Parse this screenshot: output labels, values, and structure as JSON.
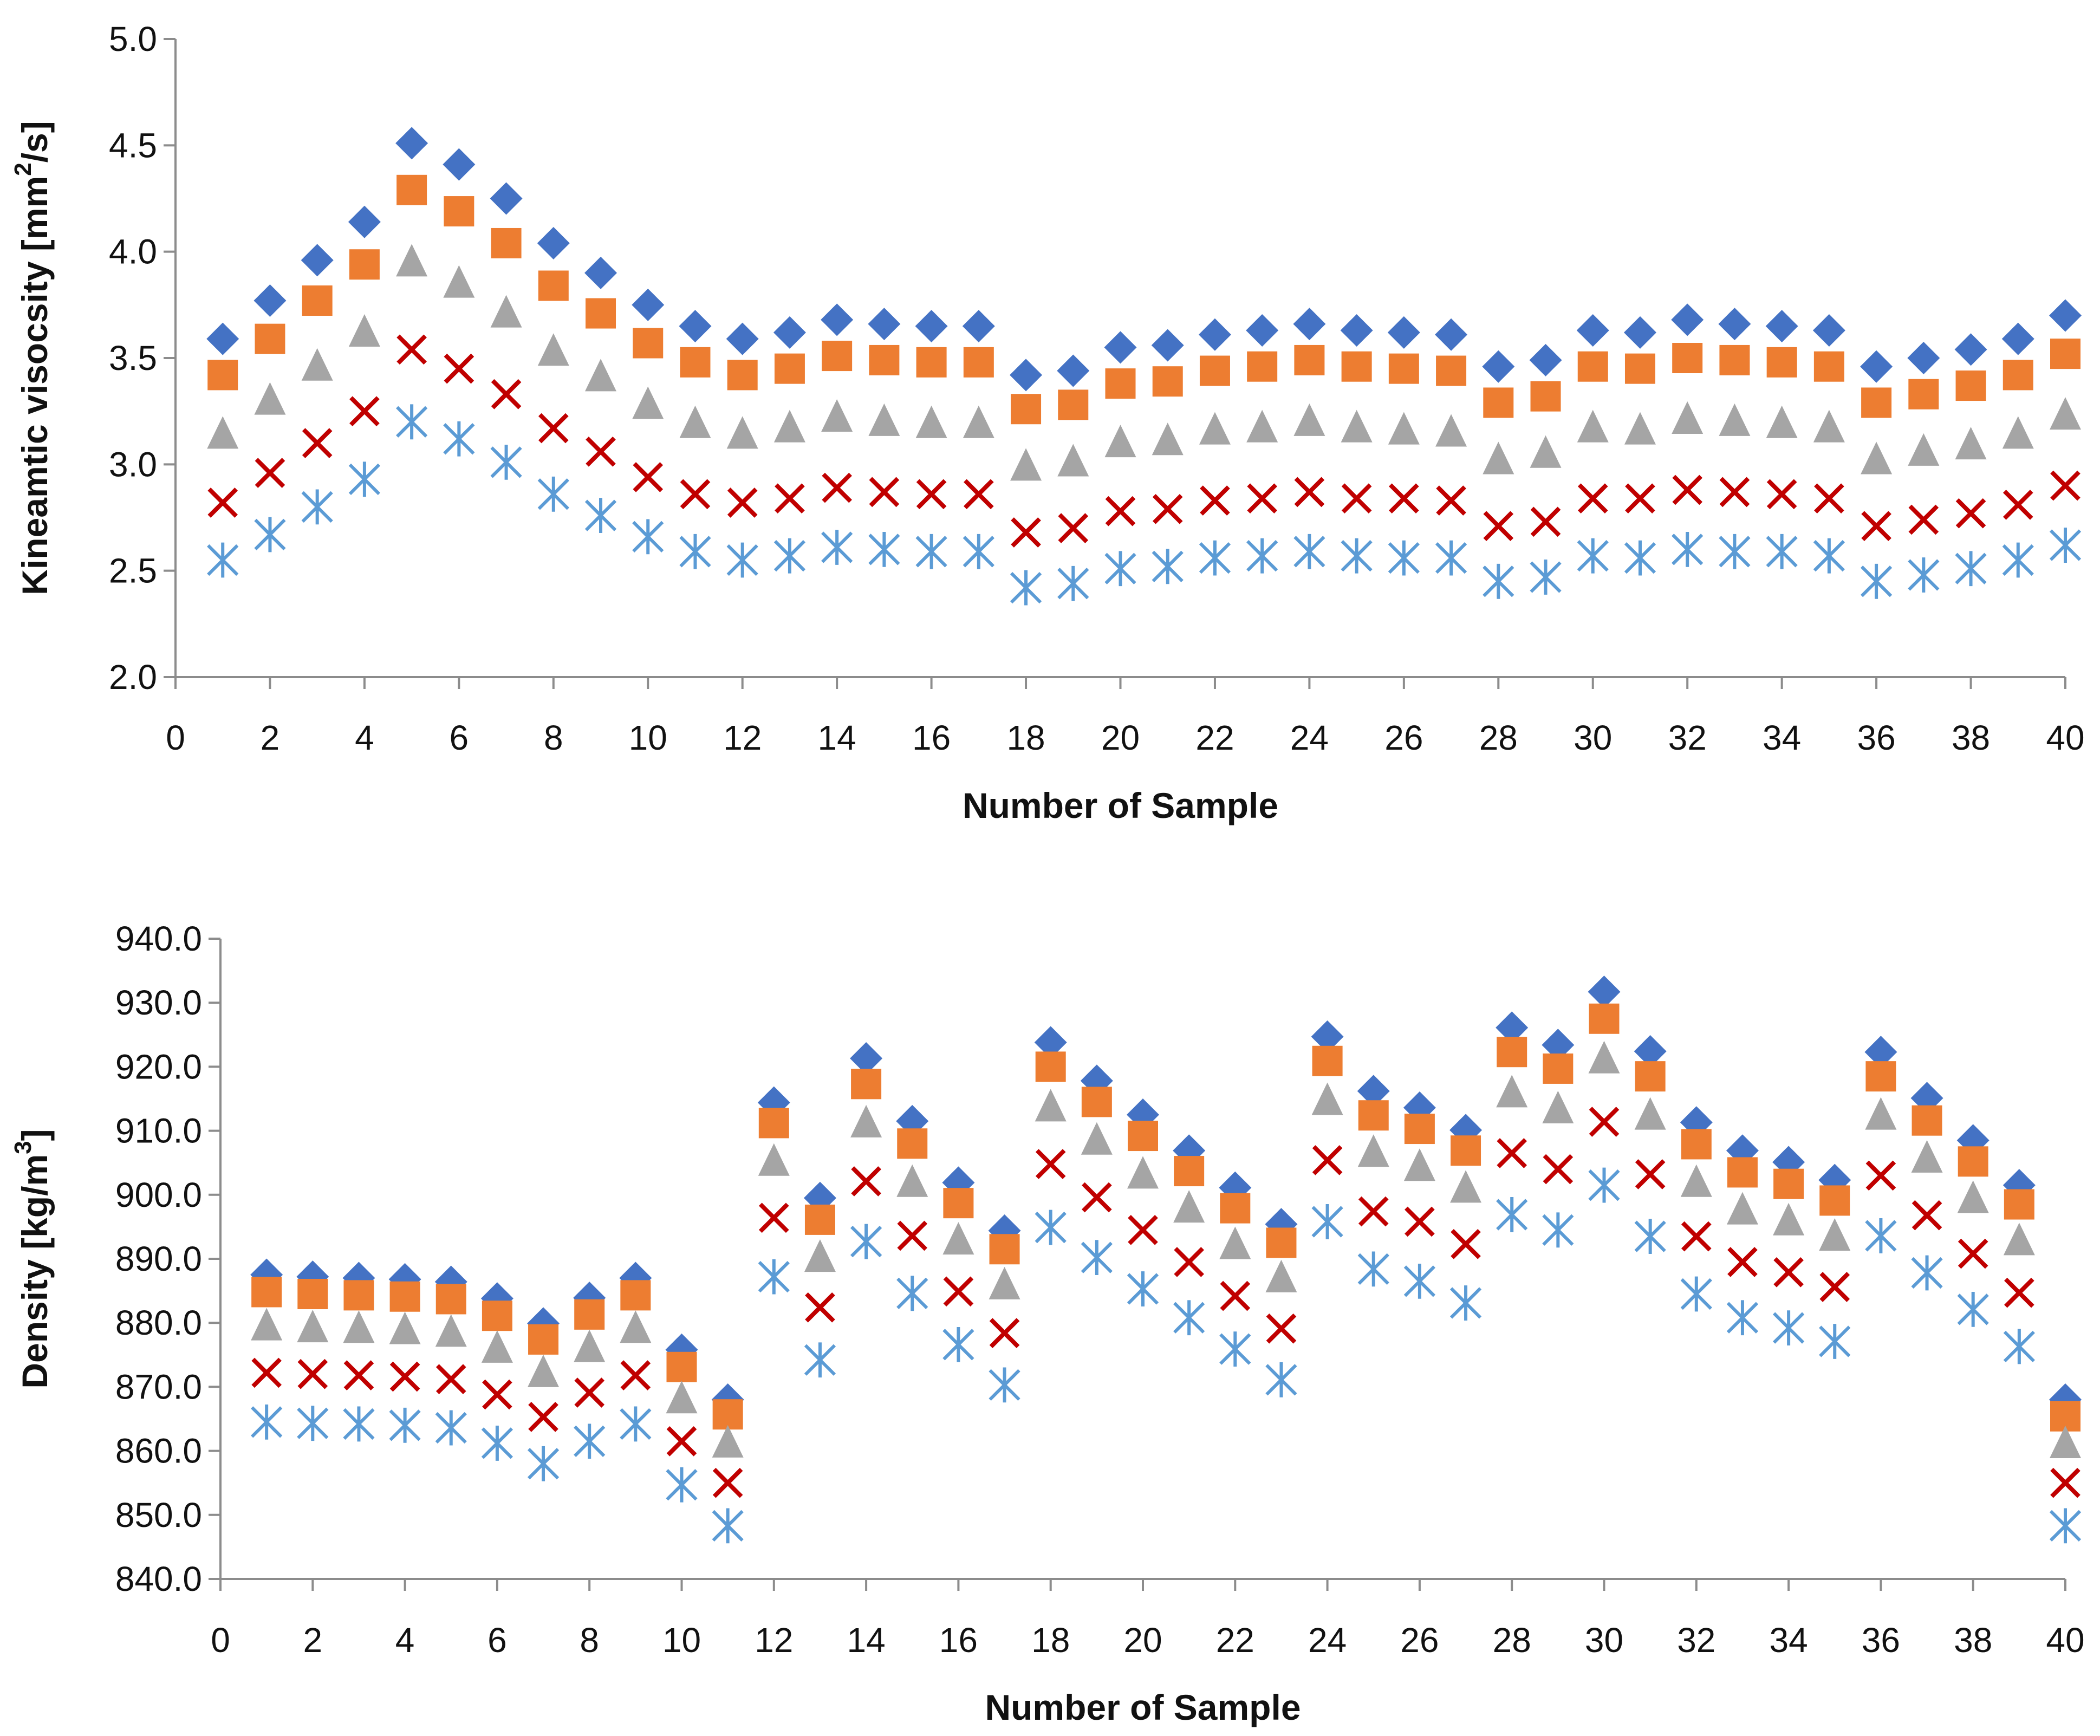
{
  "colors": {
    "diamond": "#4472C4",
    "square": "#ED7D31",
    "triangle": "#A5A5A5",
    "cross": "#C00000",
    "asterisk": "#5B9BD5",
    "axis": "#8C8C8C",
    "text": "#111111"
  },
  "chart_data": [
    {
      "type": "scatter",
      "title": "",
      "xlabel": "Number of Sample",
      "ylabel_main": "Kineamtic visocsity [mm",
      "ylabel_sup": "2",
      "ylabel_end": "/s]",
      "xlim": [
        0,
        40
      ],
      "ylim": [
        2.0,
        5.0
      ],
      "x_ticks": [
        "0",
        "2",
        "4",
        "6",
        "8",
        "10",
        "12",
        "14",
        "16",
        "18",
        "20",
        "22",
        "24",
        "26",
        "28",
        "30",
        "32",
        "34",
        "36",
        "38",
        "40"
      ],
      "y_ticks": [
        "2.0",
        "2.5",
        "3.0",
        "3.5",
        "4.0",
        "4.5",
        "5.0"
      ],
      "legend": "none",
      "x": [
        1,
        2,
        3,
        4,
        5,
        6,
        7,
        8,
        9,
        10,
        11,
        12,
        13,
        14,
        15,
        16,
        17,
        18,
        19,
        20,
        21,
        22,
        23,
        24,
        25,
        26,
        27,
        28,
        29,
        30,
        31,
        32,
        33,
        34,
        35,
        36,
        37,
        38,
        39,
        40
      ],
      "series": [
        {
          "name": "diamond",
          "marker": "diamond",
          "values": [
            3.59,
            3.77,
            3.96,
            4.14,
            4.51,
            4.41,
            4.25,
            4.04,
            3.9,
            3.75,
            3.65,
            3.59,
            3.62,
            3.68,
            3.66,
            3.65,
            3.65,
            3.42,
            3.44,
            3.55,
            3.56,
            3.61,
            3.63,
            3.66,
            3.63,
            3.62,
            3.61,
            3.46,
            3.49,
            3.63,
            3.62,
            3.68,
            3.66,
            3.65,
            3.63,
            3.46,
            3.5,
            3.54,
            3.59,
            3.7
          ]
        },
        {
          "name": "square",
          "marker": "square",
          "values": [
            3.42,
            3.59,
            3.77,
            3.94,
            4.29,
            4.19,
            4.04,
            3.84,
            3.71,
            3.57,
            3.48,
            3.42,
            3.45,
            3.51,
            3.49,
            3.48,
            3.48,
            3.26,
            3.28,
            3.38,
            3.39,
            3.44,
            3.46,
            3.49,
            3.46,
            3.45,
            3.44,
            3.29,
            3.32,
            3.46,
            3.45,
            3.5,
            3.49,
            3.48,
            3.46,
            3.29,
            3.33,
            3.37,
            3.42,
            3.52
          ]
        },
        {
          "name": "triangle",
          "marker": "triangle",
          "values": [
            3.15,
            3.31,
            3.47,
            3.63,
            3.96,
            3.86,
            3.72,
            3.54,
            3.42,
            3.29,
            3.2,
            3.15,
            3.18,
            3.23,
            3.21,
            3.2,
            3.2,
            3.0,
            3.02,
            3.11,
            3.12,
            3.17,
            3.18,
            3.21,
            3.18,
            3.17,
            3.16,
            3.03,
            3.06,
            3.18,
            3.17,
            3.22,
            3.21,
            3.2,
            3.18,
            3.03,
            3.07,
            3.1,
            3.15,
            3.24
          ]
        },
        {
          "name": "cross",
          "marker": "cross",
          "values": [
            2.82,
            2.96,
            3.1,
            3.25,
            3.54,
            3.45,
            3.33,
            3.17,
            3.06,
            2.94,
            2.86,
            2.82,
            2.84,
            2.89,
            2.87,
            2.86,
            2.86,
            2.68,
            2.7,
            2.78,
            2.79,
            2.83,
            2.84,
            2.87,
            2.84,
            2.84,
            2.83,
            2.71,
            2.73,
            2.84,
            2.84,
            2.88,
            2.87,
            2.86,
            2.84,
            2.71,
            2.74,
            2.77,
            2.81,
            2.9
          ]
        },
        {
          "name": "asterisk",
          "marker": "asterisk",
          "values": [
            2.55,
            2.67,
            2.8,
            2.93,
            3.2,
            3.12,
            3.01,
            2.86,
            2.76,
            2.66,
            2.59,
            2.55,
            2.57,
            2.61,
            2.6,
            2.59,
            2.59,
            2.42,
            2.44,
            2.51,
            2.52,
            2.56,
            2.57,
            2.59,
            2.57,
            2.56,
            2.56,
            2.45,
            2.47,
            2.57,
            2.56,
            2.6,
            2.59,
            2.59,
            2.57,
            2.45,
            2.48,
            2.51,
            2.55,
            2.62
          ]
        }
      ]
    },
    {
      "type": "scatter",
      "title": "",
      "xlabel": "Number of Sample",
      "ylabel_main": "Density [kg/m",
      "ylabel_sup": "3",
      "ylabel_end": "]",
      "xlim": [
        0,
        40
      ],
      "ylim": [
        840,
        940
      ],
      "x_ticks": [
        "0",
        "2",
        "4",
        "6",
        "8",
        "10",
        "12",
        "14",
        "16",
        "18",
        "20",
        "22",
        "24",
        "26",
        "28",
        "30",
        "32",
        "34",
        "36",
        "38",
        "40"
      ],
      "y_ticks": [
        "840.0",
        "850.0",
        "860.0",
        "870.0",
        "880.0",
        "890.0",
        "900.0",
        "910.0",
        "920.0",
        "930.0",
        "940.0"
      ],
      "legend": "none",
      "x": [
        1,
        2,
        3,
        4,
        5,
        6,
        7,
        8,
        9,
        10,
        11,
        12,
        13,
        14,
        15,
        16,
        17,
        18,
        19,
        20,
        21,
        22,
        23,
        24,
        25,
        26,
        27,
        28,
        29,
        30,
        31,
        32,
        33,
        34,
        35,
        36,
        37,
        38,
        39,
        40
      ],
      "series": [
        {
          "name": "diamond",
          "marker": "diamond",
          "values": [
            887.5,
            887.2,
            887.0,
            886.8,
            886.4,
            883.8,
            879.9,
            883.9,
            887.0,
            875.8,
            868.0,
            914.4,
            899.5,
            921.3,
            911.5,
            901.9,
            894.4,
            923.8,
            917.8,
            912.5,
            906.9,
            901.1,
            895.4,
            924.7,
            916.2,
            913.6,
            910.1,
            926.1,
            923.4,
            931.7,
            922.4,
            911.3,
            906.9,
            905.1,
            902.3,
            922.3,
            915.1,
            908.5,
            901.5,
            868.0
          ]
        },
        {
          "name": "square",
          "marker": "square",
          "values": [
            884.8,
            884.5,
            884.3,
            884.1,
            883.7,
            881.1,
            877.4,
            881.3,
            884.3,
            873.1,
            865.7,
            911.2,
            896.1,
            917.3,
            908.0,
            898.7,
            891.5,
            920.0,
            914.5,
            909.2,
            903.7,
            897.9,
            892.5,
            920.9,
            912.4,
            910.3,
            906.9,
            922.3,
            919.7,
            927.5,
            918.5,
            907.9,
            903.5,
            901.7,
            899.1,
            918.5,
            911.6,
            905.2,
            898.5,
            865.4
          ]
        },
        {
          "name": "triangle",
          "marker": "triangle",
          "values": [
            879.8,
            879.5,
            879.4,
            879.2,
            878.8,
            876.3,
            872.5,
            876.4,
            879.4,
            868.4,
            861.5,
            905.5,
            890.5,
            911.5,
            902.2,
            893.2,
            886.2,
            914.0,
            908.8,
            903.5,
            898.2,
            892.5,
            887.3,
            915.0,
            906.9,
            904.7,
            901.3,
            916.2,
            913.7,
            921.5,
            912.7,
            902.2,
            897.9,
            896.2,
            893.8,
            912.7,
            906.0,
            899.7,
            893.1,
            861.4
          ]
        },
        {
          "name": "cross",
          "marker": "cross",
          "values": [
            872.2,
            872.0,
            871.8,
            871.6,
            871.2,
            868.8,
            865.3,
            869.1,
            871.8,
            861.5,
            855.0,
            896.4,
            882.4,
            902.1,
            893.6,
            884.9,
            878.4,
            904.8,
            899.6,
            894.5,
            889.5,
            884.2,
            879.1,
            905.4,
            897.4,
            895.8,
            892.3,
            906.5,
            904.0,
            911.4,
            903.2,
            893.5,
            889.5,
            887.9,
            885.6,
            903.0,
            896.8,
            890.8,
            884.7,
            855.0
          ]
        },
        {
          "name": "asterisk",
          "marker": "asterisk",
          "values": [
            864.5,
            864.3,
            864.2,
            864.0,
            863.6,
            861.2,
            858.0,
            861.5,
            864.2,
            854.7,
            848.3,
            887.2,
            874.2,
            892.7,
            884.6,
            876.6,
            870.3,
            894.9,
            890.2,
            885.3,
            880.8,
            875.9,
            871.1,
            895.8,
            888.4,
            886.5,
            883.1,
            896.9,
            894.5,
            901.5,
            893.5,
            884.5,
            880.8,
            879.2,
            877.1,
            893.6,
            887.8,
            882.1,
            876.3,
            848.3
          ]
        }
      ]
    }
  ]
}
